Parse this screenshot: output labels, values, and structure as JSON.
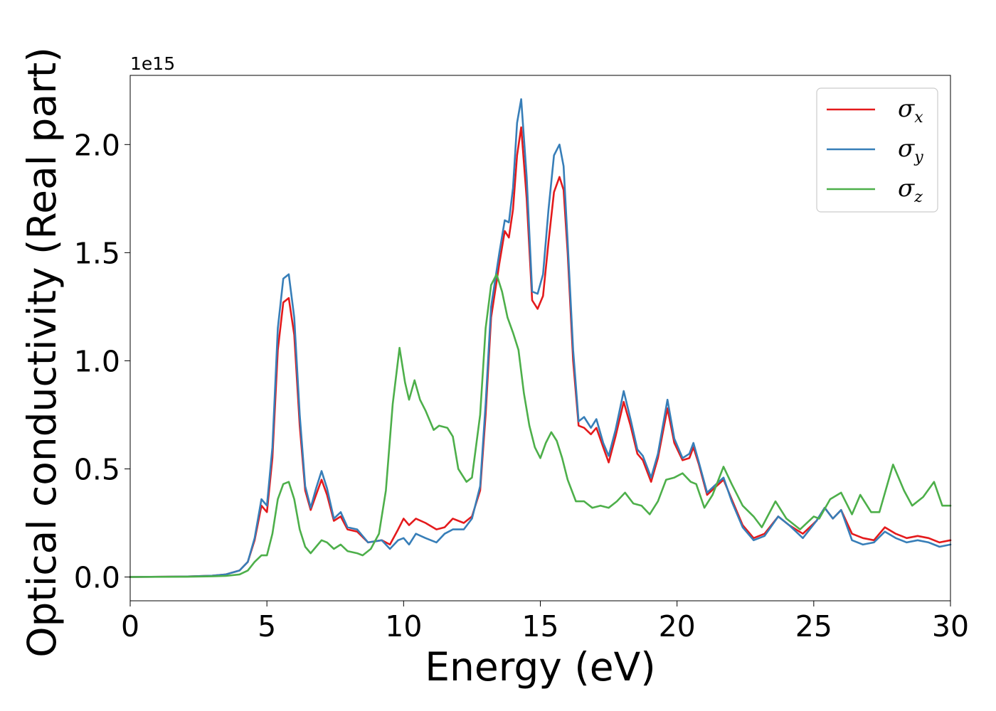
{
  "chart_data": {
    "type": "line",
    "xlabel": "Energy (eV)",
    "ylabel": "Optical conductivity (Real part)",
    "y_offset_text": "1e15",
    "xlim": [
      0,
      30
    ],
    "ylim": [
      -0.11,
      2.32
    ],
    "x_ticks": [
      0,
      5,
      10,
      15,
      20,
      25,
      30
    ],
    "y_ticks": [
      0.0,
      0.5,
      1.0,
      1.5,
      2.0
    ],
    "x_tick_labels": [
      "0",
      "5",
      "10",
      "15",
      "20",
      "25",
      "30"
    ],
    "y_tick_labels": [
      "0.0",
      "0.5",
      "1.0",
      "1.5",
      "2.0"
    ],
    "grid": false,
    "legend_position": "top-right",
    "series": [
      {
        "name": "σx",
        "color": "#e41a1c",
        "points": [
          [
            0,
            0
          ],
          [
            2,
            0.002
          ],
          [
            3,
            0.006
          ],
          [
            3.5,
            0.012
          ],
          [
            4,
            0.03
          ],
          [
            4.3,
            0.07
          ],
          [
            4.55,
            0.17
          ],
          [
            4.8,
            0.33
          ],
          [
            5.0,
            0.3
          ],
          [
            5.2,
            0.55
          ],
          [
            5.4,
            1.05
          ],
          [
            5.6,
            1.27
          ],
          [
            5.8,
            1.29
          ],
          [
            6.0,
            1.12
          ],
          [
            6.2,
            0.7
          ],
          [
            6.4,
            0.4
          ],
          [
            6.6,
            0.31
          ],
          [
            6.8,
            0.38
          ],
          [
            7.0,
            0.45
          ],
          [
            7.2,
            0.38
          ],
          [
            7.45,
            0.26
          ],
          [
            7.7,
            0.28
          ],
          [
            7.95,
            0.22
          ],
          [
            8.3,
            0.21
          ],
          [
            8.7,
            0.16
          ],
          [
            9.2,
            0.17
          ],
          [
            9.5,
            0.15
          ],
          [
            9.8,
            0.22
          ],
          [
            10.0,
            0.27
          ],
          [
            10.2,
            0.24
          ],
          [
            10.45,
            0.27
          ],
          [
            10.8,
            0.25
          ],
          [
            11.2,
            0.22
          ],
          [
            11.5,
            0.23
          ],
          [
            11.8,
            0.27
          ],
          [
            12.2,
            0.25
          ],
          [
            12.5,
            0.28
          ],
          [
            12.8,
            0.4
          ],
          [
            13.0,
            0.75
          ],
          [
            13.2,
            1.2
          ],
          [
            13.5,
            1.45
          ],
          [
            13.7,
            1.6
          ],
          [
            13.85,
            1.57
          ],
          [
            14.0,
            1.7
          ],
          [
            14.15,
            1.95
          ],
          [
            14.3,
            2.08
          ],
          [
            14.5,
            1.75
          ],
          [
            14.7,
            1.28
          ],
          [
            14.9,
            1.24
          ],
          [
            15.1,
            1.3
          ],
          [
            15.3,
            1.55
          ],
          [
            15.5,
            1.78
          ],
          [
            15.7,
            1.85
          ],
          [
            15.85,
            1.79
          ],
          [
            16.0,
            1.5
          ],
          [
            16.2,
            1.0
          ],
          [
            16.4,
            0.7
          ],
          [
            16.6,
            0.69
          ],
          [
            16.85,
            0.66
          ],
          [
            17.05,
            0.69
          ],
          [
            17.3,
            0.6
          ],
          [
            17.5,
            0.53
          ],
          [
            17.75,
            0.65
          ],
          [
            18.05,
            0.81
          ],
          [
            18.3,
            0.7
          ],
          [
            18.55,
            0.57
          ],
          [
            18.75,
            0.54
          ],
          [
            19.05,
            0.44
          ],
          [
            19.3,
            0.55
          ],
          [
            19.65,
            0.78
          ],
          [
            19.9,
            0.62
          ],
          [
            20.2,
            0.54
          ],
          [
            20.45,
            0.55
          ],
          [
            20.6,
            0.6
          ],
          [
            20.8,
            0.52
          ],
          [
            21.1,
            0.38
          ],
          [
            21.35,
            0.41
          ],
          [
            21.7,
            0.45
          ],
          [
            22.0,
            0.36
          ],
          [
            22.4,
            0.24
          ],
          [
            22.8,
            0.18
          ],
          [
            23.2,
            0.2
          ],
          [
            23.7,
            0.28
          ],
          [
            24.1,
            0.24
          ],
          [
            24.6,
            0.2
          ],
          [
            25.1,
            0.26
          ],
          [
            25.4,
            0.32
          ],
          [
            25.7,
            0.27
          ],
          [
            26.0,
            0.31
          ],
          [
            26.4,
            0.2
          ],
          [
            26.8,
            0.18
          ],
          [
            27.2,
            0.17
          ],
          [
            27.6,
            0.23
          ],
          [
            28.0,
            0.2
          ],
          [
            28.4,
            0.18
          ],
          [
            28.8,
            0.19
          ],
          [
            29.2,
            0.18
          ],
          [
            29.6,
            0.16
          ],
          [
            30,
            0.17
          ]
        ]
      },
      {
        "name": "σy",
        "color": "#377eb8",
        "points": [
          [
            0,
            0
          ],
          [
            2,
            0.002
          ],
          [
            3,
            0.006
          ],
          [
            3.5,
            0.012
          ],
          [
            4,
            0.03
          ],
          [
            4.3,
            0.07
          ],
          [
            4.55,
            0.18
          ],
          [
            4.8,
            0.36
          ],
          [
            5.0,
            0.33
          ],
          [
            5.2,
            0.6
          ],
          [
            5.4,
            1.15
          ],
          [
            5.6,
            1.38
          ],
          [
            5.8,
            1.4
          ],
          [
            6.0,
            1.2
          ],
          [
            6.2,
            0.75
          ],
          [
            6.4,
            0.42
          ],
          [
            6.6,
            0.32
          ],
          [
            6.8,
            0.41
          ],
          [
            7.0,
            0.49
          ],
          [
            7.2,
            0.41
          ],
          [
            7.45,
            0.27
          ],
          [
            7.7,
            0.3
          ],
          [
            7.95,
            0.23
          ],
          [
            8.3,
            0.22
          ],
          [
            8.7,
            0.16
          ],
          [
            9.2,
            0.17
          ],
          [
            9.5,
            0.13
          ],
          [
            9.8,
            0.17
          ],
          [
            10.0,
            0.18
          ],
          [
            10.2,
            0.15
          ],
          [
            10.45,
            0.2
          ],
          [
            10.8,
            0.18
          ],
          [
            11.2,
            0.16
          ],
          [
            11.5,
            0.2
          ],
          [
            11.8,
            0.22
          ],
          [
            12.2,
            0.22
          ],
          [
            12.5,
            0.27
          ],
          [
            12.8,
            0.42
          ],
          [
            13.0,
            0.8
          ],
          [
            13.2,
            1.25
          ],
          [
            13.5,
            1.5
          ],
          [
            13.7,
            1.65
          ],
          [
            13.85,
            1.64
          ],
          [
            14.0,
            1.8
          ],
          [
            14.15,
            2.1
          ],
          [
            14.3,
            2.21
          ],
          [
            14.5,
            1.85
          ],
          [
            14.7,
            1.32
          ],
          [
            14.9,
            1.31
          ],
          [
            15.1,
            1.4
          ],
          [
            15.3,
            1.7
          ],
          [
            15.5,
            1.95
          ],
          [
            15.7,
            2.0
          ],
          [
            15.85,
            1.9
          ],
          [
            16.0,
            1.55
          ],
          [
            16.2,
            1.05
          ],
          [
            16.4,
            0.72
          ],
          [
            16.6,
            0.74
          ],
          [
            16.85,
            0.69
          ],
          [
            17.05,
            0.73
          ],
          [
            17.3,
            0.62
          ],
          [
            17.5,
            0.56
          ],
          [
            17.75,
            0.68
          ],
          [
            18.05,
            0.86
          ],
          [
            18.3,
            0.73
          ],
          [
            18.55,
            0.59
          ],
          [
            18.75,
            0.56
          ],
          [
            19.05,
            0.46
          ],
          [
            19.3,
            0.57
          ],
          [
            19.65,
            0.82
          ],
          [
            19.9,
            0.64
          ],
          [
            20.2,
            0.55
          ],
          [
            20.45,
            0.57
          ],
          [
            20.6,
            0.62
          ],
          [
            20.8,
            0.53
          ],
          [
            21.1,
            0.39
          ],
          [
            21.35,
            0.42
          ],
          [
            21.7,
            0.46
          ],
          [
            22.0,
            0.35
          ],
          [
            22.4,
            0.23
          ],
          [
            22.8,
            0.17
          ],
          [
            23.2,
            0.19
          ],
          [
            23.7,
            0.28
          ],
          [
            24.1,
            0.24
          ],
          [
            24.6,
            0.18
          ],
          [
            25.1,
            0.26
          ],
          [
            25.4,
            0.32
          ],
          [
            25.7,
            0.27
          ],
          [
            26.0,
            0.31
          ],
          [
            26.4,
            0.17
          ],
          [
            26.8,
            0.15
          ],
          [
            27.2,
            0.16
          ],
          [
            27.6,
            0.21
          ],
          [
            28.0,
            0.18
          ],
          [
            28.4,
            0.16
          ],
          [
            28.8,
            0.17
          ],
          [
            29.2,
            0.16
          ],
          [
            29.6,
            0.14
          ],
          [
            30,
            0.15
          ]
        ]
      },
      {
        "name": "σz",
        "color": "#4daf4a",
        "points": [
          [
            0,
            0
          ],
          [
            2,
            0.001
          ],
          [
            3,
            0.003
          ],
          [
            3.5,
            0.005
          ],
          [
            4,
            0.012
          ],
          [
            4.3,
            0.03
          ],
          [
            4.55,
            0.07
          ],
          [
            4.8,
            0.1
          ],
          [
            5.0,
            0.1
          ],
          [
            5.2,
            0.2
          ],
          [
            5.4,
            0.36
          ],
          [
            5.6,
            0.43
          ],
          [
            5.8,
            0.44
          ],
          [
            6.0,
            0.36
          ],
          [
            6.2,
            0.22
          ],
          [
            6.4,
            0.14
          ],
          [
            6.6,
            0.11
          ],
          [
            6.8,
            0.14
          ],
          [
            7.0,
            0.17
          ],
          [
            7.2,
            0.16
          ],
          [
            7.45,
            0.13
          ],
          [
            7.7,
            0.15
          ],
          [
            7.95,
            0.12
          ],
          [
            8.3,
            0.11
          ],
          [
            8.5,
            0.1
          ],
          [
            8.8,
            0.13
          ],
          [
            9.1,
            0.2
          ],
          [
            9.35,
            0.4
          ],
          [
            9.6,
            0.8
          ],
          [
            9.85,
            1.06
          ],
          [
            10.05,
            0.9
          ],
          [
            10.2,
            0.82
          ],
          [
            10.4,
            0.91
          ],
          [
            10.6,
            0.82
          ],
          [
            10.8,
            0.77
          ],
          [
            11.1,
            0.68
          ],
          [
            11.3,
            0.7
          ],
          [
            11.6,
            0.69
          ],
          [
            11.8,
            0.65
          ],
          [
            12.0,
            0.5
          ],
          [
            12.3,
            0.44
          ],
          [
            12.5,
            0.46
          ],
          [
            12.8,
            0.75
          ],
          [
            13.0,
            1.15
          ],
          [
            13.2,
            1.35
          ],
          [
            13.4,
            1.4
          ],
          [
            13.6,
            1.32
          ],
          [
            13.8,
            1.2
          ],
          [
            14.0,
            1.13
          ],
          [
            14.2,
            1.05
          ],
          [
            14.4,
            0.85
          ],
          [
            14.6,
            0.7
          ],
          [
            14.8,
            0.6
          ],
          [
            15.0,
            0.55
          ],
          [
            15.2,
            0.62
          ],
          [
            15.4,
            0.67
          ],
          [
            15.6,
            0.63
          ],
          [
            15.8,
            0.55
          ],
          [
            16.0,
            0.45
          ],
          [
            16.3,
            0.35
          ],
          [
            16.6,
            0.35
          ],
          [
            16.9,
            0.32
          ],
          [
            17.2,
            0.33
          ],
          [
            17.5,
            0.32
          ],
          [
            17.8,
            0.35
          ],
          [
            18.1,
            0.39
          ],
          [
            18.4,
            0.34
          ],
          [
            18.7,
            0.33
          ],
          [
            19.0,
            0.29
          ],
          [
            19.3,
            0.35
          ],
          [
            19.6,
            0.45
          ],
          [
            19.9,
            0.46
          ],
          [
            20.2,
            0.48
          ],
          [
            20.5,
            0.44
          ],
          [
            20.7,
            0.43
          ],
          [
            21.0,
            0.32
          ],
          [
            21.3,
            0.38
          ],
          [
            21.7,
            0.51
          ],
          [
            22.0,
            0.43
          ],
          [
            22.4,
            0.33
          ],
          [
            22.8,
            0.28
          ],
          [
            23.1,
            0.23
          ],
          [
            23.6,
            0.35
          ],
          [
            24.0,
            0.27
          ],
          [
            24.5,
            0.22
          ],
          [
            25.0,
            0.28
          ],
          [
            25.2,
            0.27
          ],
          [
            25.6,
            0.36
          ],
          [
            26.0,
            0.39
          ],
          [
            26.4,
            0.29
          ],
          [
            26.7,
            0.38
          ],
          [
            27.1,
            0.3
          ],
          [
            27.4,
            0.3
          ],
          [
            27.9,
            0.52
          ],
          [
            28.3,
            0.4
          ],
          [
            28.6,
            0.33
          ],
          [
            29.0,
            0.37
          ],
          [
            29.4,
            0.44
          ],
          [
            29.7,
            0.33
          ],
          [
            30,
            0.33
          ]
        ]
      }
    ]
  }
}
